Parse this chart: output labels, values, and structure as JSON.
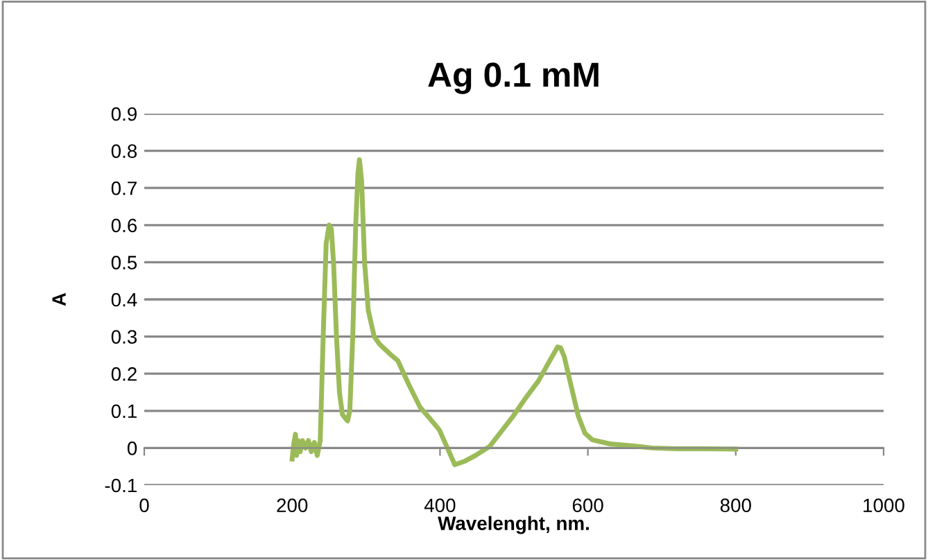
{
  "chart_data": {
    "type": "line",
    "title": "Ag 0.1 mM",
    "xlabel": "Wavelenght, nm.",
    "ylabel": "A",
    "series": [
      {
        "color": "#9bbb59",
        "x": [
          200,
          202,
          204.5,
          206,
          208,
          211,
          214,
          218,
          222,
          226,
          230,
          234,
          238,
          242,
          246,
          250,
          253,
          256,
          260,
          264,
          268,
          272,
          275,
          278,
          282,
          286,
          289,
          291,
          294,
          298,
          303,
          311,
          318,
          326,
          334,
          343,
          358,
          373,
          386,
          399,
          410,
          420,
          434,
          448,
          467,
          483,
          499,
          516,
          533,
          547,
          559,
          563,
          568,
          577,
          587,
          596,
          606,
          630,
          660,
          687,
          720,
          760,
          800
        ],
        "values": [
          -0.03,
          0.01,
          0.037,
          -0.02,
          0.02,
          -0.01,
          0.02,
          0.0,
          0.02,
          -0.01,
          0.015,
          -0.02,
          0.02,
          0.3,
          0.55,
          0.6,
          0.59,
          0.5,
          0.3,
          0.15,
          0.09,
          0.08,
          0.073,
          0.1,
          0.3,
          0.6,
          0.74,
          0.776,
          0.72,
          0.5,
          0.37,
          0.3,
          0.28,
          0.265,
          0.25,
          0.235,
          0.17,
          0.11,
          0.08,
          0.049,
          0.0,
          -0.045,
          -0.035,
          -0.02,
          0.004,
          0.045,
          0.086,
          0.135,
          0.18,
          0.23,
          0.272,
          0.27,
          0.246,
          0.17,
          0.086,
          0.04,
          0.022,
          0.011,
          0.006,
          0.0,
          -0.002,
          -0.002,
          -0.003
        ]
      }
    ],
    "xlim": [
      0,
      1000
    ],
    "xticks": [
      0,
      200,
      400,
      600,
      800,
      1000
    ],
    "ylim": [
      -0.1,
      0.9
    ],
    "yticks": [
      -0.1,
      0,
      0.1,
      0.2,
      0.3,
      0.4,
      0.5,
      0.6,
      0.7,
      0.8,
      0.9
    ],
    "grid": "y",
    "marker": "none",
    "line_style": "solid"
  }
}
